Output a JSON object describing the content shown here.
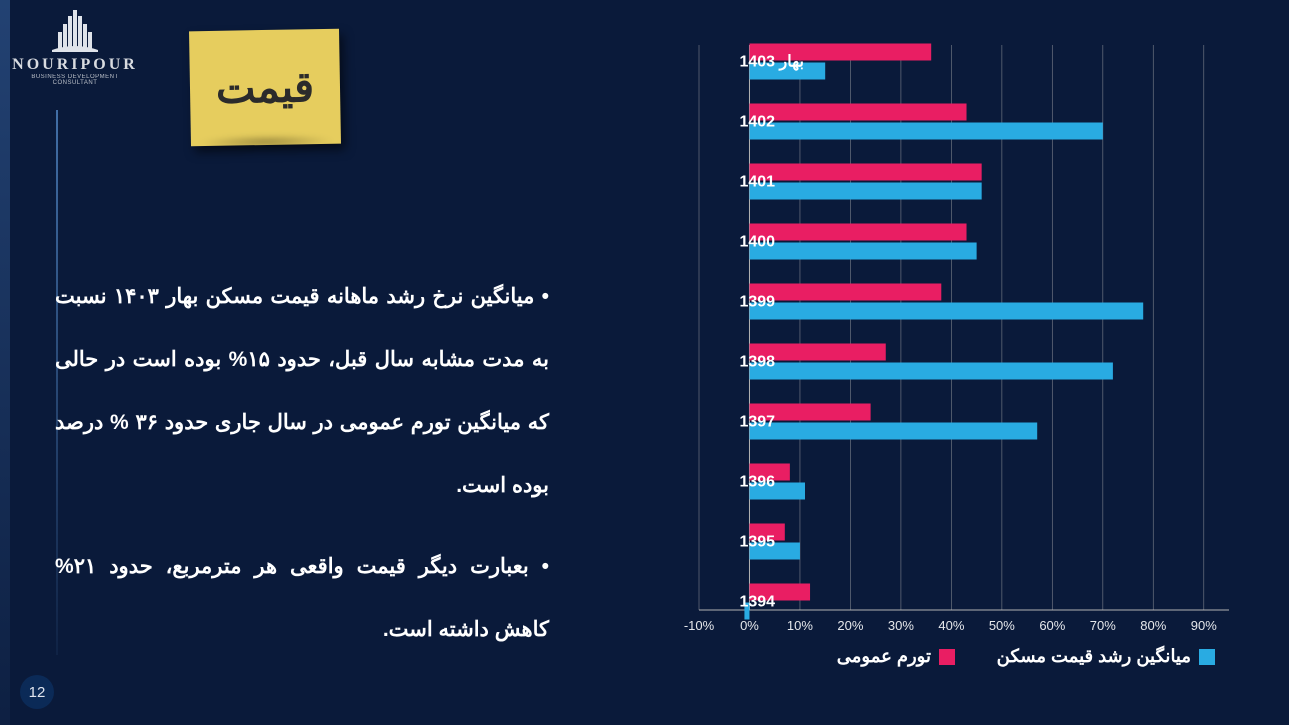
{
  "brand": {
    "name": "NOURIPOUR",
    "subtitle": "BUSINESS DEVELOPMENT CONSULTANT"
  },
  "sticky": {
    "label": "قیمت"
  },
  "bullets": [
    "میانگین نرخ رشد ماهانه قیمت مسکن بهار ۱۴۰۳ نسبت به مدت مشابه سال قبل، حدود ۱۵% بوده است در حالی که میانگین تورم عمومی در سال جاری حدود ۳۶ % درصد بوده است.",
    "بعبارت دیگر قیمت واقعی هر مترمربع، حدود ۲۱% کاهش داشته است."
  ],
  "page_number": "12",
  "chart": {
    "type": "grouped_horizontal_bar",
    "background_color": "#0a1a3a",
    "grid_color": "#6d7380",
    "axis_color": "#b3b3b3",
    "tick_label_color": "#e5e7eb",
    "tick_fontsize": 13,
    "category_label_color": "#ffffff",
    "category_fontsize": 16,
    "legend_fontsize": 18,
    "bar_gap_within_group": 2,
    "bar_thickness": 17,
    "group_gap": 24,
    "x_axis": {
      "min_pct": -10,
      "max_pct": 95,
      "tick_step_pct": 10,
      "tick_labels": [
        "-10%",
        "0%",
        "10%",
        "20%",
        "30%",
        "40%",
        "50%",
        "60%",
        "70%",
        "80%",
        "90%"
      ]
    },
    "categories": [
      "بهار 1403",
      "1402",
      "1401",
      "1400",
      "1399",
      "1398",
      "1397",
      "1396",
      "1395",
      "1394"
    ],
    "series": [
      {
        "id": "inflation",
        "label": "تورم عمومی",
        "color": "#e91e63",
        "values_pct": [
          36,
          43,
          46,
          43,
          38,
          27,
          24,
          8,
          7,
          12
        ]
      },
      {
        "id": "housing",
        "label": "میانگین رشد قیمت مسکن",
        "color": "#29abe2",
        "values_pct": [
          15,
          70,
          46,
          45,
          78,
          72,
          57,
          11,
          10,
          -1
        ]
      }
    ]
  }
}
